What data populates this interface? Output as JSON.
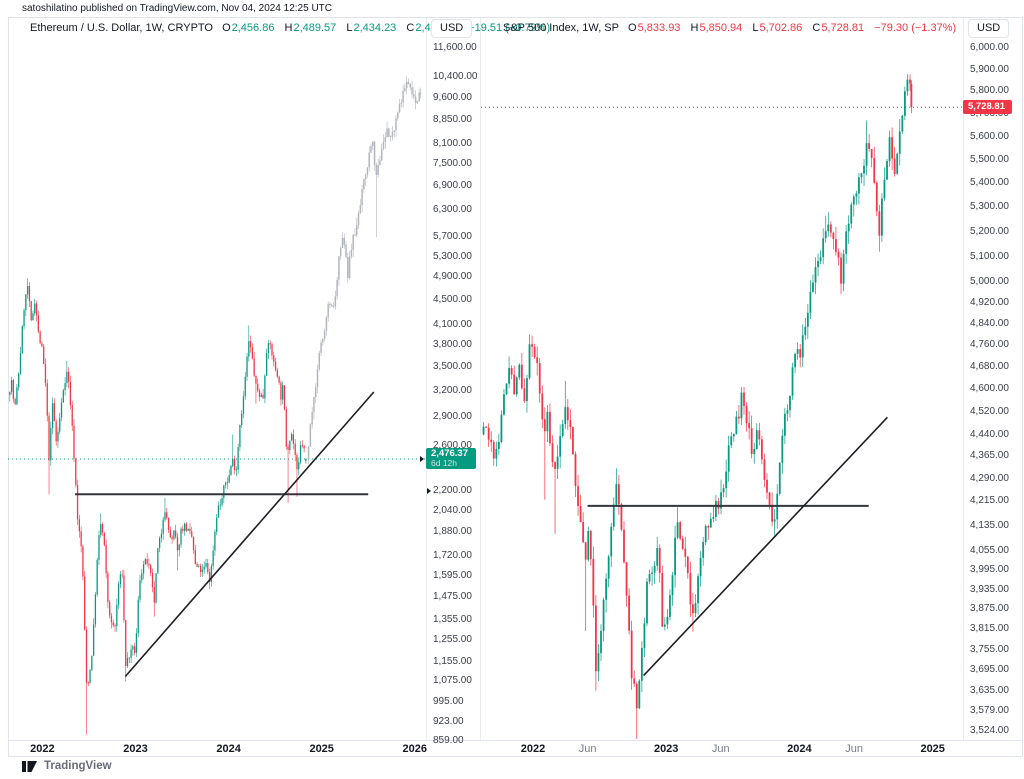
{
  "header": {
    "published_line": "satoshilatino published on TradingView.com, Nov 04, 2024 12:25 UTC"
  },
  "footer": {
    "brand": "TradingView"
  },
  "colors": {
    "up": "#089981",
    "down": "#f23645",
    "projection": "#b2b5be",
    "border": "#e0e3eb",
    "trend_line": "#1d1f24",
    "neck_line": "#33363e"
  },
  "chart_data": [
    {
      "type": "candlestick",
      "title": "Ethereum / U.S. Dollar, 1W, CRYPTO",
      "currency": "USD",
      "interval": "1W",
      "ohlc_labels": [
        "O",
        "H",
        "L",
        "C"
      ],
      "ohlc_text": [
        "2,456.86",
        "2,489.57",
        "2,434.23",
        "2,476.37"
      ],
      "ohlc_values": [
        2456.86,
        2489.57,
        2434.23,
        2476.37
      ],
      "change_text": "+19.51 (+0.79%)",
      "direction": "up",
      "scale": "log",
      "last_price": 2476.37,
      "last_price_text": "2,476.37",
      "countdown": "6d 12h",
      "axis_marker_prices": [
        2476.37,
        2200
      ],
      "y_domain": [
        862,
        11950
      ],
      "y_ticks": [
        11600,
        10400,
        9600,
        8850,
        8100,
        7500,
        6900,
        6300,
        5700,
        5300,
        4900,
        4500,
        4100,
        3800,
        3500,
        3200,
        2900,
        2600,
        2200,
        2040,
        1880,
        1720,
        1595,
        1475,
        1355,
        1255,
        1155,
        1075,
        995,
        923,
        859
      ],
      "t_domain": [
        2021.63,
        2026.11
      ],
      "x_ticks": [
        {
          "t": 2022,
          "label": "2022",
          "major": true
        },
        {
          "t": 2023,
          "label": "2023",
          "major": true
        },
        {
          "t": 2024,
          "label": "2024",
          "major": true
        },
        {
          "t": 2025,
          "label": "2025",
          "major": true
        },
        {
          "t": 2026,
          "label": "2026",
          "major": true
        }
      ],
      "lines": {
        "horizontal": {
          "price": 2170,
          "t1": 2022.35,
          "t2": 2025.5
        },
        "trend": {
          "t1": 2022.89,
          "p1": 1094,
          "t2": 2025.56,
          "p2": 3185
        }
      },
      "weekly_close_anchors": [
        [
          2021.63,
          3150
        ],
        [
          2021.67,
          3320
        ],
        [
          2021.7,
          2960
        ],
        [
          2021.75,
          3480
        ],
        [
          2021.8,
          4350
        ],
        [
          2021.84,
          4750,
          null,
          4880
        ],
        [
          2021.88,
          4120
        ],
        [
          2021.92,
          4520
        ],
        [
          2021.96,
          3920
        ],
        [
          2022.0,
          3710
        ],
        [
          2022.04,
          3180
        ],
        [
          2022.07,
          2480,
          2170
        ],
        [
          2022.11,
          3060
        ],
        [
          2022.15,
          2620
        ],
        [
          2022.19,
          2920
        ],
        [
          2022.23,
          3280
        ],
        [
          2022.27,
          3460,
          null,
          3580
        ],
        [
          2022.31,
          2940
        ],
        [
          2022.35,
          2360
        ],
        [
          2022.38,
          1960
        ],
        [
          2022.42,
          1760
        ],
        [
          2022.44,
          1540
        ],
        [
          2022.47,
          1065,
          880
        ],
        [
          2022.5,
          1080
        ],
        [
          2022.54,
          1230
        ],
        [
          2022.58,
          1620
        ],
        [
          2022.62,
          1960,
          null,
          2020
        ],
        [
          2022.66,
          1830
        ],
        [
          2022.7,
          1460
        ],
        [
          2022.74,
          1330
        ],
        [
          2022.78,
          1320
        ],
        [
          2022.82,
          1560
        ],
        [
          2022.86,
          1620
        ],
        [
          2022.89,
          1140,
          1074
        ],
        [
          2022.93,
          1180
        ],
        [
          2022.97,
          1210
        ],
        [
          2023.0,
          1200
        ],
        [
          2023.04,
          1560
        ],
        [
          2023.08,
          1660
        ],
        [
          2023.12,
          1690,
          null,
          1740
        ],
        [
          2023.16,
          1610
        ],
        [
          2023.2,
          1440,
          1370
        ],
        [
          2023.24,
          1760
        ],
        [
          2023.28,
          1890
        ],
        [
          2023.31,
          2080,
          null,
          2140
        ],
        [
          2023.35,
          1910
        ],
        [
          2023.39,
          1810
        ],
        [
          2023.42,
          1900
        ],
        [
          2023.45,
          1740,
          1630
        ],
        [
          2023.49,
          1900
        ],
        [
          2023.53,
          1930
        ],
        [
          2023.57,
          1880
        ],
        [
          2023.61,
          1840
        ],
        [
          2023.64,
          1660
        ],
        [
          2023.68,
          1640
        ],
        [
          2023.72,
          1620
        ],
        [
          2023.76,
          1670
        ],
        [
          2023.8,
          1560,
          1520
        ],
        [
          2023.84,
          1810
        ],
        [
          2023.88,
          2060
        ],
        [
          2023.92,
          2100
        ],
        [
          2023.96,
          2260
        ],
        [
          2024.0,
          2300
        ],
        [
          2024.04,
          2480,
          null,
          2717
        ],
        [
          2024.08,
          2360
        ],
        [
          2024.12,
          2820
        ],
        [
          2024.16,
          3120
        ],
        [
          2024.19,
          3520
        ],
        [
          2024.22,
          3880,
          null,
          4090
        ],
        [
          2024.26,
          3560
        ],
        [
          2024.29,
          3260,
          3050
        ],
        [
          2024.33,
          3160
        ],
        [
          2024.37,
          3120
        ],
        [
          2024.41,
          3760
        ],
        [
          2024.45,
          3800
        ],
        [
          2024.49,
          3510
        ],
        [
          2024.53,
          3400
        ],
        [
          2024.56,
          3120
        ],
        [
          2024.59,
          3280
        ],
        [
          2024.61,
          2690
        ],
        [
          2024.63,
          2540,
          2100
        ],
        [
          2024.67,
          2760
        ],
        [
          2024.71,
          2560
        ],
        [
          2024.74,
          2310,
          2150
        ],
        [
          2024.78,
          2660
        ],
        [
          2024.82,
          2530
        ],
        [
          2024.84,
          2476.37
        ]
      ],
      "projection_anchors": [
        [
          2024.84,
          2476
        ],
        [
          2024.9,
          2950
        ],
        [
          2024.96,
          3500
        ],
        [
          2025.02,
          4000
        ],
        [
          2025.08,
          4500
        ],
        [
          2025.12,
          4280
        ],
        [
          2025.18,
          5150
        ],
        [
          2025.23,
          5900
        ],
        [
          2025.28,
          4980
        ],
        [
          2025.34,
          5650
        ],
        [
          2025.41,
          6400
        ],
        [
          2025.48,
          7300
        ],
        [
          2025.54,
          8300
        ],
        [
          2025.58,
          7200,
          5700
        ],
        [
          2025.64,
          7900
        ],
        [
          2025.7,
          8600
        ],
        [
          2025.75,
          8250
        ],
        [
          2025.82,
          9300
        ],
        [
          2025.88,
          9850
        ],
        [
          2025.94,
          10200,
          null,
          10350
        ],
        [
          2026.0,
          9450
        ],
        [
          2026.06,
          9800
        ]
      ],
      "projection_note": "gray candles = hypothetical future path"
    },
    {
      "type": "candlestick",
      "title": "S&P 500 Index, 1W, SP",
      "currency": "USD",
      "interval": "1W",
      "ohlc_labels": [
        "O",
        "H",
        "L",
        "C"
      ],
      "ohlc_text": [
        "5,833.93",
        "5,850.94",
        "5,702.86",
        "5,728.81"
      ],
      "ohlc_values": [
        5833.93,
        5850.94,
        5702.86,
        5728.81
      ],
      "change_text": "−79.30 (−1.37%)",
      "direction": "down",
      "scale": "log",
      "last_price": 5728.81,
      "last_price_text": "5,728.81",
      "axis_marker_prices": [],
      "y_domain": [
        3500,
        6037
      ],
      "y_ticks": [
        6000,
        5900,
        5800,
        5700,
        5600,
        5500,
        5400,
        5300,
        5200,
        5100,
        5000,
        4920,
        4840,
        4760,
        4680,
        4600,
        4520,
        4440,
        4365,
        4290,
        4215,
        4135,
        4055,
        3995,
        3935,
        3875,
        3815,
        3755,
        3695,
        3635,
        3579,
        3524
      ],
      "t_domain": [
        2021.61,
        2025.22
      ],
      "x_ticks": [
        {
          "t": 2022,
          "label": "2022",
          "major": true
        },
        {
          "t": 2022.41,
          "label": "Jun",
          "major": false
        },
        {
          "t": 2023,
          "label": "2023",
          "major": true
        },
        {
          "t": 2023.41,
          "label": "Jun",
          "major": false
        },
        {
          "t": 2024,
          "label": "2024",
          "major": true
        },
        {
          "t": 2024.41,
          "label": "Jun",
          "major": false
        },
        {
          "t": 2025,
          "label": "2025",
          "major": true
        }
      ],
      "lines": {
        "horizontal": {
          "price": 4200,
          "t1": 2022.41,
          "t2": 2024.52
        },
        "trend": {
          "t1": 2022.83,
          "p1": 3680,
          "t2": 2024.66,
          "p2": 4500
        }
      },
      "weekly_close_anchors": [
        [
          2021.61,
          4440
        ],
        [
          2021.65,
          4490
        ],
        [
          2021.7,
          4360
        ],
        [
          2021.74,
          4420
        ],
        [
          2021.78,
          4560
        ],
        [
          2021.82,
          4690
        ],
        [
          2021.86,
          4590
        ],
        [
          2021.9,
          4700
        ],
        [
          2021.93,
          4550
        ],
        [
          2021.97,
          4730
        ],
        [
          2022.0,
          4770,
          null,
          4796
        ],
        [
          2022.04,
          4660
        ],
        [
          2022.08,
          4410,
          4220
        ],
        [
          2022.11,
          4510
        ],
        [
          2022.14,
          4360
        ],
        [
          2022.17,
          4340,
          4110
        ],
        [
          2022.21,
          4460
        ],
        [
          2022.24,
          4540,
          null,
          4630
        ],
        [
          2022.28,
          4480
        ],
        [
          2022.32,
          4260
        ],
        [
          2022.36,
          4120
        ],
        [
          2022.39,
          4020,
          3810
        ],
        [
          2022.42,
          4160
        ],
        [
          2022.45,
          3900
        ],
        [
          2022.47,
          3680,
          3637
        ],
        [
          2022.51,
          3825
        ],
        [
          2022.55,
          3960
        ],
        [
          2022.59,
          4130
        ],
        [
          2022.62,
          4280,
          null,
          4325
        ],
        [
          2022.66,
          4140
        ],
        [
          2022.7,
          3920
        ],
        [
          2022.74,
          3690
        ],
        [
          2022.78,
          3585,
          3491
        ],
        [
          2022.82,
          3750
        ],
        [
          2022.86,
          3990
        ],
        [
          2022.9,
          3960
        ],
        [
          2022.94,
          4070,
          null,
          4100
        ],
        [
          2022.97,
          3845
        ],
        [
          2023.0,
          3840
        ],
        [
          2023.04,
          3970
        ],
        [
          2023.08,
          4135,
          null,
          4195
        ],
        [
          2023.12,
          4080
        ],
        [
          2023.16,
          3970
        ],
        [
          2023.2,
          3860,
          3808
        ],
        [
          2023.24,
          3970
        ],
        [
          2023.28,
          4105
        ],
        [
          2023.32,
          4130
        ],
        [
          2023.36,
          4190
        ],
        [
          2023.4,
          4200
        ],
        [
          2023.44,
          4300
        ],
        [
          2023.47,
          4410
        ],
        [
          2023.5,
          4450
        ],
        [
          2023.54,
          4510
        ],
        [
          2023.57,
          4580,
          null,
          4607
        ],
        [
          2023.61,
          4480
        ],
        [
          2023.65,
          4370
        ],
        [
          2023.69,
          4450
        ],
        [
          2023.73,
          4320
        ],
        [
          2023.77,
          4220
        ],
        [
          2023.81,
          4120,
          4103
        ],
        [
          2023.85,
          4360
        ],
        [
          2023.89,
          4510
        ],
        [
          2023.93,
          4560
        ],
        [
          2023.97,
          4770
        ],
        [
          2024.0,
          4700
        ],
        [
          2024.04,
          4840
        ],
        [
          2024.08,
          4960
        ],
        [
          2024.12,
          5030
        ],
        [
          2024.16,
          5120
        ],
        [
          2024.2,
          5230,
          null,
          5264
        ],
        [
          2024.24,
          5200
        ],
        [
          2024.28,
          5120
        ],
        [
          2024.31,
          5010,
          4954
        ],
        [
          2024.35,
          5220
        ],
        [
          2024.39,
          5300
        ],
        [
          2024.43,
          5350
        ],
        [
          2024.47,
          5460
        ],
        [
          2024.51,
          5570,
          null,
          5670
        ],
        [
          2024.54,
          5500
        ],
        [
          2024.57,
          5350
        ],
        [
          2024.6,
          5200,
          5120
        ],
        [
          2024.64,
          5450
        ],
        [
          2024.68,
          5620
        ],
        [
          2024.71,
          5410
        ],
        [
          2024.75,
          5630
        ],
        [
          2024.78,
          5750
        ],
        [
          2024.81,
          5830
        ],
        [
          2024.83,
          5858,
          null,
          5878
        ],
        [
          2024.84,
          5728.81
        ]
      ]
    }
  ]
}
